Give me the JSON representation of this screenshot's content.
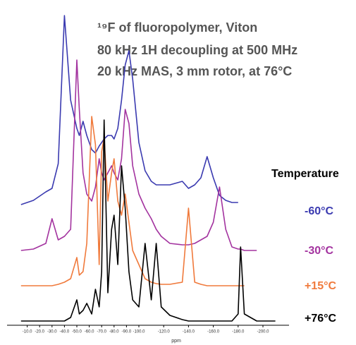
{
  "chart_data": {
    "type": "spectra",
    "title_lines": [
      "¹⁹F of fluoropolymer, Viton",
      "80 kHz 1H decoupling at 500 MHz",
      "20 kHz MAS, 3 mm rotor, at 76°C"
    ],
    "legend_title": "Temperature",
    "x_label": "ppm",
    "xlim": [
      0,
      -215
    ],
    "xticks": [
      {
        "value": -10,
        "label": "-10.0"
      },
      {
        "value": -20,
        "label": "-20.0"
      },
      {
        "value": -30,
        "label": "-30.0"
      },
      {
        "value": -40,
        "label": "-40.0"
      },
      {
        "value": -50,
        "label": "-50.0"
      },
      {
        "value": -60,
        "label": "-60.0"
      },
      {
        "value": -70,
        "label": "-70.0"
      },
      {
        "value": -80,
        "label": "-80.0"
      },
      {
        "value": -90,
        "label": "-90.0"
      },
      {
        "value": -100,
        "label": "-100.0"
      },
      {
        "value": -120,
        "label": "-120.0"
      },
      {
        "value": -140,
        "label": "-140.0"
      },
      {
        "value": -160,
        "label": "-160.0"
      },
      {
        "value": -180,
        "label": "-180.0"
      },
      {
        "value": -200,
        "label": "-200.0"
      }
    ],
    "x": [
      -5,
      -15,
      -25,
      -30,
      -35,
      -40,
      -45,
      -50,
      -52,
      -55,
      -58,
      -62,
      -65,
      -68,
      -70,
      -72,
      -75,
      -78,
      -80,
      -83,
      -86,
      -89,
      -92,
      -95,
      -100,
      -105,
      -110,
      -114,
      -118,
      -125,
      -135,
      -140,
      -145,
      -150,
      -155,
      -160,
      -165,
      -170,
      -175,
      -180,
      -182,
      -185,
      -195,
      -210
    ],
    "series": [
      {
        "name": "-60°C",
        "color": "#3a3ab0",
        "values": [
          2,
          8,
          20,
          25,
          60,
          270,
          150,
          110,
          100,
          120,
          100,
          80,
          75,
          85,
          90,
          95,
          100,
          100,
          95,
          110,
          150,
          200,
          220,
          180,
          90,
          50,
          35,
          30,
          30,
          30,
          35,
          25,
          30,
          40,
          70,
          40,
          15,
          8,
          5,
          5,
          null,
          null,
          null,
          null
        ]
      },
      {
        "name": "-30°C",
        "color": "#a3339f",
        "values": [
          0,
          2,
          10,
          45,
          15,
          20,
          30,
          270,
          200,
          110,
          80,
          70,
          90,
          130,
          110,
          100,
          110,
          120,
          110,
          100,
          130,
          200,
          180,
          120,
          80,
          60,
          45,
          30,
          20,
          10,
          8,
          8,
          10,
          15,
          20,
          40,
          90,
          30,
          5,
          2,
          2,
          0,
          0,
          null
        ]
      },
      {
        "name": "+15°C",
        "color": "#f07a3c",
        "values": [
          0,
          0,
          0,
          0,
          2,
          5,
          10,
          40,
          15,
          20,
          60,
          240,
          200,
          30,
          190,
          210,
          120,
          160,
          180,
          120,
          100,
          130,
          90,
          50,
          30,
          10,
          5,
          3,
          2,
          2,
          5,
          110,
          5,
          2,
          0,
          0,
          0,
          0,
          0,
          0,
          0,
          0,
          null,
          null
        ]
      },
      {
        "name": "+76°C",
        "color": "#000000",
        "values": [
          0,
          0,
          0,
          0,
          0,
          0,
          5,
          30,
          10,
          15,
          25,
          10,
          45,
          20,
          70,
          285,
          40,
          130,
          150,
          80,
          220,
          160,
          70,
          30,
          20,
          110,
          30,
          110,
          20,
          8,
          2,
          0,
          0,
          0,
          0,
          0,
          0,
          0,
          0,
          10,
          105,
          10,
          0,
          0
        ]
      }
    ]
  }
}
